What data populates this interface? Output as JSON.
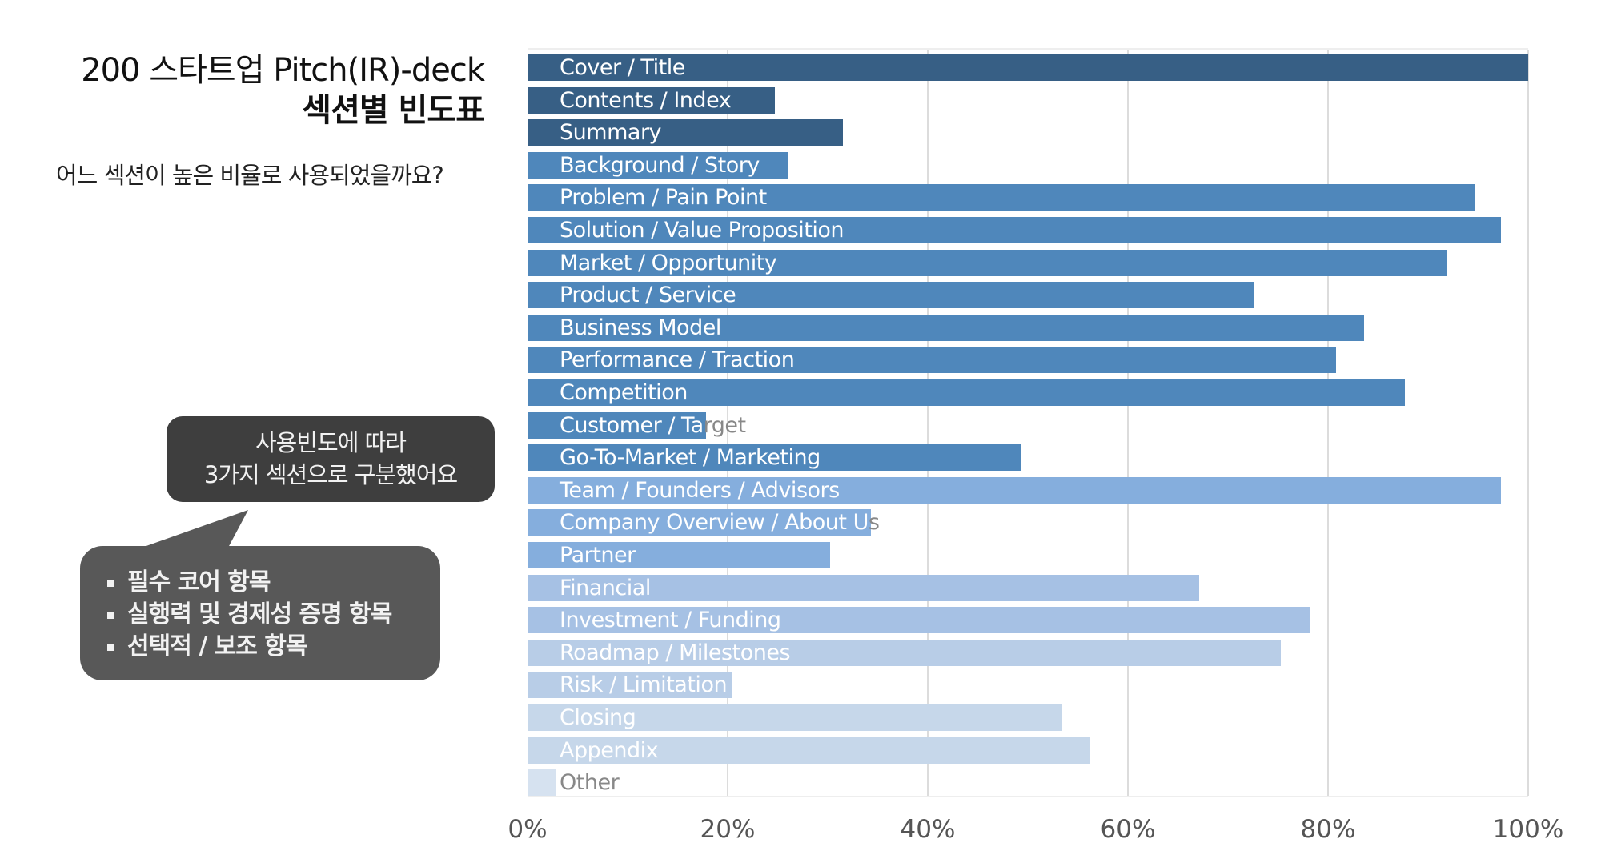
{
  "header": {
    "title_line1": "200 스타트업  Pitch(IR)-deck",
    "title_line2": "섹션별 빈도표",
    "subtitle": "어느 섹션이 높은 비율로 사용되었을까요?"
  },
  "callout": {
    "line1": "사용빈도에 따라",
    "line2": "3가지 섹션으로 구분했어요",
    "items": [
      "필수 코어 항목",
      "실행력 및 경제성 증명 항목",
      "선택적 / 보조 항목"
    ]
  },
  "chart_data": {
    "type": "bar",
    "orientation": "horizontal",
    "categories": [
      "Cover / Title",
      "Contents / Index",
      "Summary",
      "Background / Story",
      "Problem / Pain Point",
      "Solution / Value Proposition",
      "Market / Opportunity",
      "Product / Service",
      "Business Model",
      "Performance / Traction",
      "Competition",
      "Customer / Target",
      "Go-To-Market / Marketing",
      "Team / Founders / Advisors",
      "Company Overview / About Us",
      "Partner",
      "Financial",
      "Investment / Funding",
      "Roadmap / Milestones",
      "Risk / Limitation",
      "Closing",
      "Appendix",
      "Other"
    ],
    "values": [
      100,
      24.7,
      31.5,
      26.1,
      94.6,
      97.3,
      91.8,
      72.6,
      83.6,
      80.8,
      87.7,
      17.8,
      49.3,
      97.3,
      34.3,
      30.2,
      67.1,
      78.2,
      75.3,
      20.5,
      53.4,
      56.2,
      2.8
    ],
    "colors": [
      "#375f85",
      "#375f85",
      "#375f85",
      "#4f87bb",
      "#4f87bb",
      "#4f87bb",
      "#4f87bb",
      "#4f87bb",
      "#4f87bb",
      "#4f87bb",
      "#4f87bb",
      "#4f87bb",
      "#4f87bb",
      "#85aedd",
      "#85aedd",
      "#85aedd",
      "#a6c1e4",
      "#a6c1e4",
      "#b8cde7",
      "#b8cde7",
      "#c6d7ea",
      "#c6d7ea",
      "#d6e2f0"
    ],
    "xlim": [
      0,
      100
    ],
    "x_ticks": [
      "0%",
      "20%",
      "40%",
      "60%",
      "80%",
      "100%"
    ],
    "grid": true,
    "xlabel": "",
    "ylabel": ""
  }
}
